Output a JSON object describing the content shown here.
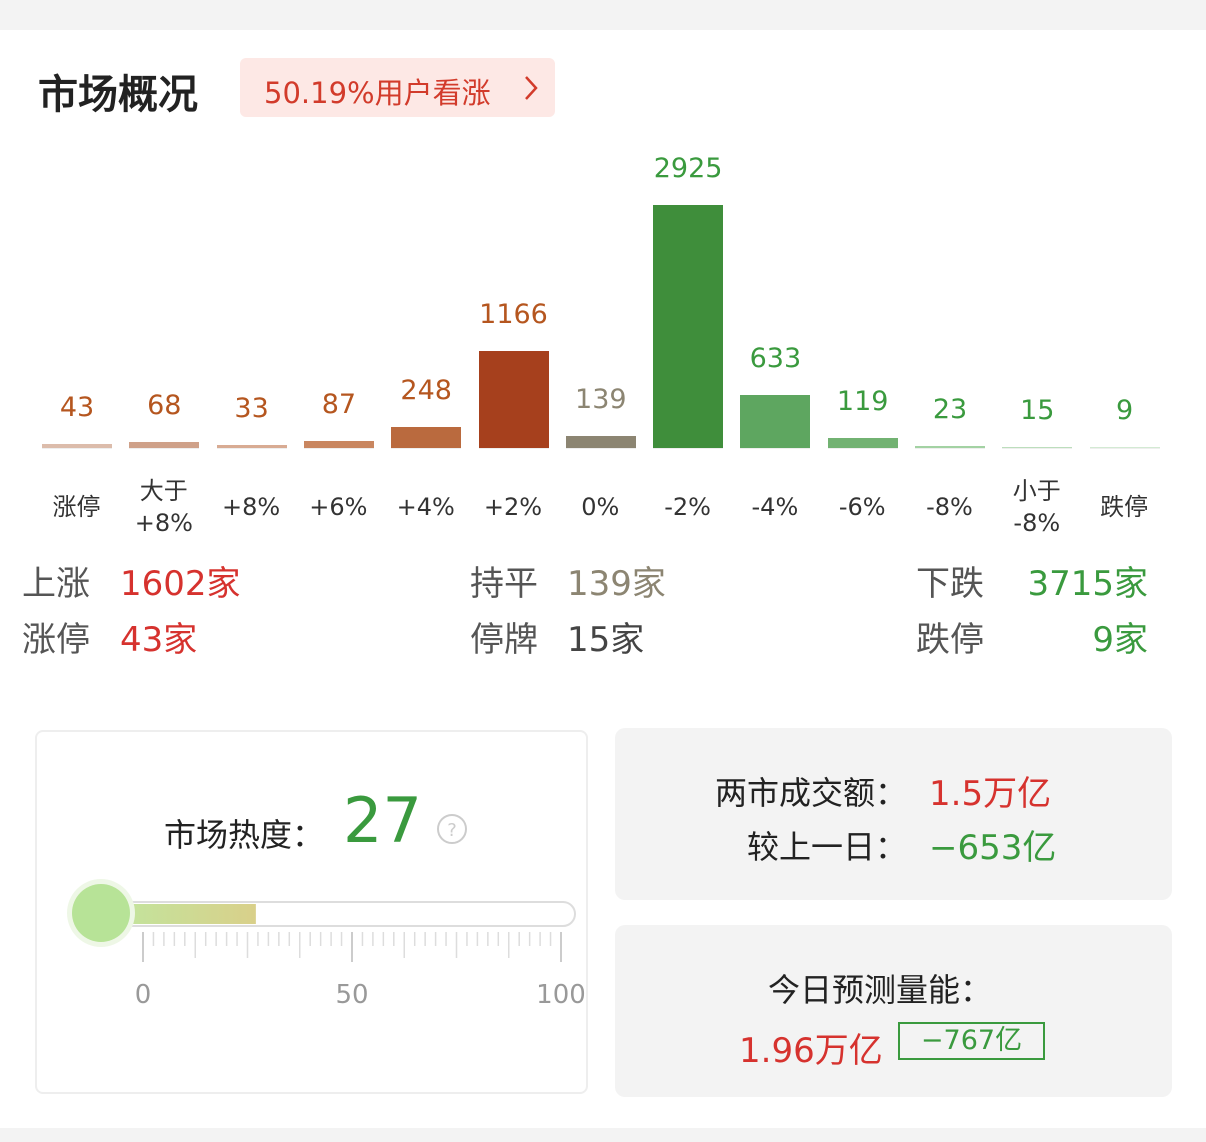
{
  "header": {
    "title": "市场概况",
    "badge": "50.19%用户看涨"
  },
  "chart_data": {
    "type": "bar",
    "categories": [
      "涨停",
      "大于\n+8%",
      "+8%",
      "+6%",
      "+4%",
      "+2%",
      "0%",
      "-2%",
      "-4%",
      "-6%",
      "-8%",
      "小于\n-8%",
      "跌停"
    ],
    "values": [
      43,
      68,
      33,
      87,
      248,
      1166,
      139,
      2925,
      633,
      119,
      23,
      15,
      9
    ],
    "colors": [
      "#dcbcab",
      "#cfa189",
      "#d8ab93",
      "#c98660",
      "#ba6a3e",
      "#a6401d",
      "#8c8572",
      "#3f8e3b",
      "#5ea660",
      "#72b272",
      "#a3d2a3",
      "#bcdebc",
      "#d3ead3"
    ],
    "label_colors": [
      "#b5561f",
      "#b5561f",
      "#b5561f",
      "#b5561f",
      "#b5561f",
      "#b5561f",
      "#8c8572",
      "#3a9a3e",
      "#3a9a3e",
      "#3a9a3e",
      "#3a9a3e",
      "#3a9a3e",
      "#3a9a3e"
    ]
  },
  "summary": [
    [
      {
        "label": "上涨",
        "value": "1602家",
        "color": "#d6322e"
      },
      {
        "label": "持平",
        "value": "139家",
        "color": "#8c8572"
      },
      {
        "label": "下跌",
        "value": "3715家",
        "color": "#3a9a3e"
      }
    ],
    [
      {
        "label": "涨停",
        "value": "43家",
        "color": "#d6322e"
      },
      {
        "label": "停牌",
        "value": "15家",
        "color": "#444444"
      },
      {
        "label": "跌停",
        "value": "9家",
        "color": "#3a9a3e"
      }
    ]
  ],
  "heat": {
    "label": "市场热度：",
    "value": 27,
    "lim": [
      0,
      100
    ],
    "ticks": [
      0,
      50,
      100
    ]
  },
  "turnover": {
    "label": "两市成交额：",
    "value": "1.5万亿",
    "change_label": "较上一日：",
    "change": "−653亿"
  },
  "forecast": {
    "label": "今日预测量能：",
    "value": "1.96万亿",
    "change": "−767亿"
  }
}
